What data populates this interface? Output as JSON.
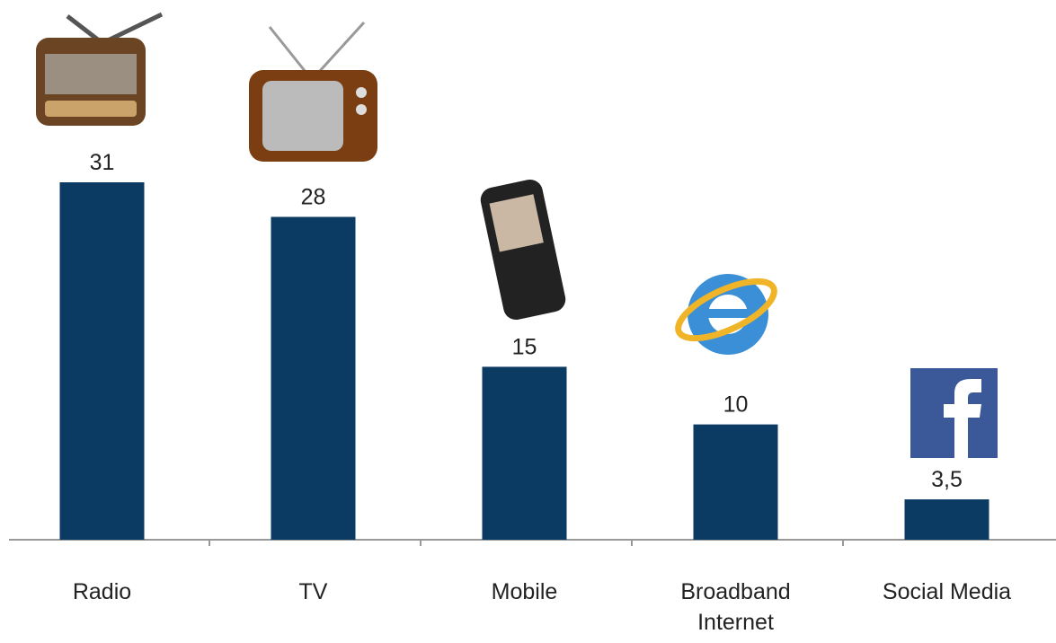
{
  "chart_data": {
    "type": "bar",
    "categories": [
      "Radio",
      "TV",
      "Mobile",
      "Broadband Internet",
      "Social Media"
    ],
    "values": [
      31,
      28,
      15,
      10,
      3.5
    ],
    "value_labels": [
      "31",
      "28",
      "15",
      "10",
      "3,5"
    ],
    "color": "#0b3a63"
  }
}
